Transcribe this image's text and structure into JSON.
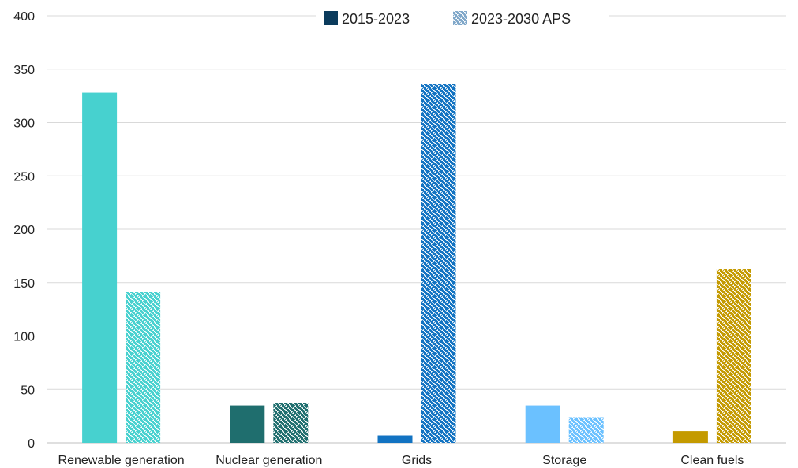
{
  "chart_data": {
    "type": "bar",
    "title": "",
    "xlabel": "",
    "ylabel": "",
    "ylim": [
      0,
      400
    ],
    "yticks": [
      0,
      50,
      100,
      150,
      200,
      250,
      300,
      350,
      400
    ],
    "grid": true,
    "legend_position": "top-center",
    "categories": [
      "Renewable generation",
      "Nuclear generation",
      "Grids",
      "Storage",
      "Clean fuels"
    ],
    "category_colors": [
      "#47d1cf",
      "#1f6e6e",
      "#1273c2",
      "#6bc1ff",
      "#c49a00"
    ],
    "series": [
      {
        "name": "2015-2023",
        "values": [
          328,
          35,
          7,
          35,
          11
        ],
        "style": "solid",
        "legend_color": "#0b3b5c"
      },
      {
        "name": "2023-2030 APS",
        "values": [
          141,
          37,
          336,
          24,
          163
        ],
        "style": "hatched",
        "legend_color": "#7fa7c9"
      }
    ]
  }
}
